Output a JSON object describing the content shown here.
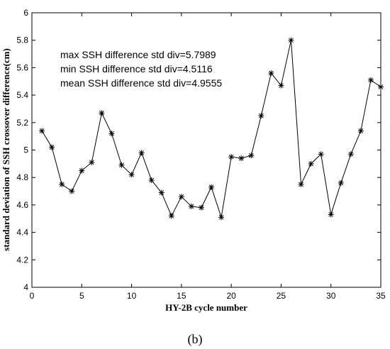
{
  "chart_data": {
    "type": "line",
    "xlabel": "HY-2B cycle number",
    "ylabel": "standard deviation of SSH crossover difference(cm)",
    "xlim": [
      0,
      35
    ],
    "ylim": [
      4,
      6
    ],
    "xticks": [
      "0",
      "5",
      "10",
      "15",
      "20",
      "25",
      "30",
      "35"
    ],
    "yticks": [
      "4",
      "4.2",
      "4.4",
      "4.6",
      "4.8",
      "5",
      "5.2",
      "5.4",
      "5.6",
      "5.8",
      "6"
    ],
    "grid": false,
    "marker": "asterisk",
    "series": [
      {
        "x": [
          1,
          2,
          3,
          4,
          5,
          6,
          7,
          8,
          9,
          10,
          11,
          12,
          13,
          14,
          15,
          16,
          17,
          18,
          19,
          20,
          21,
          22,
          23,
          24,
          25,
          26,
          27,
          28,
          29,
          30,
          31,
          32,
          33,
          34,
          35
        ],
        "values": [
          5.14,
          5.02,
          4.75,
          4.7,
          4.85,
          4.91,
          5.27,
          5.12,
          4.89,
          4.82,
          4.98,
          4.78,
          4.69,
          4.52,
          4.66,
          4.59,
          4.58,
          4.73,
          4.51,
          4.95,
          4.94,
          4.96,
          5.25,
          5.56,
          5.47,
          5.8,
          4.75,
          4.9,
          4.97,
          4.53,
          4.76,
          4.97,
          5.14,
          5.51,
          5.46
        ]
      }
    ],
    "annotations": [
      "max SSH difference std div=5.7989",
      "min SSH difference std div=4.5116",
      "mean SSH difference std div=4.9555"
    ]
  },
  "panel_label": "(b)"
}
